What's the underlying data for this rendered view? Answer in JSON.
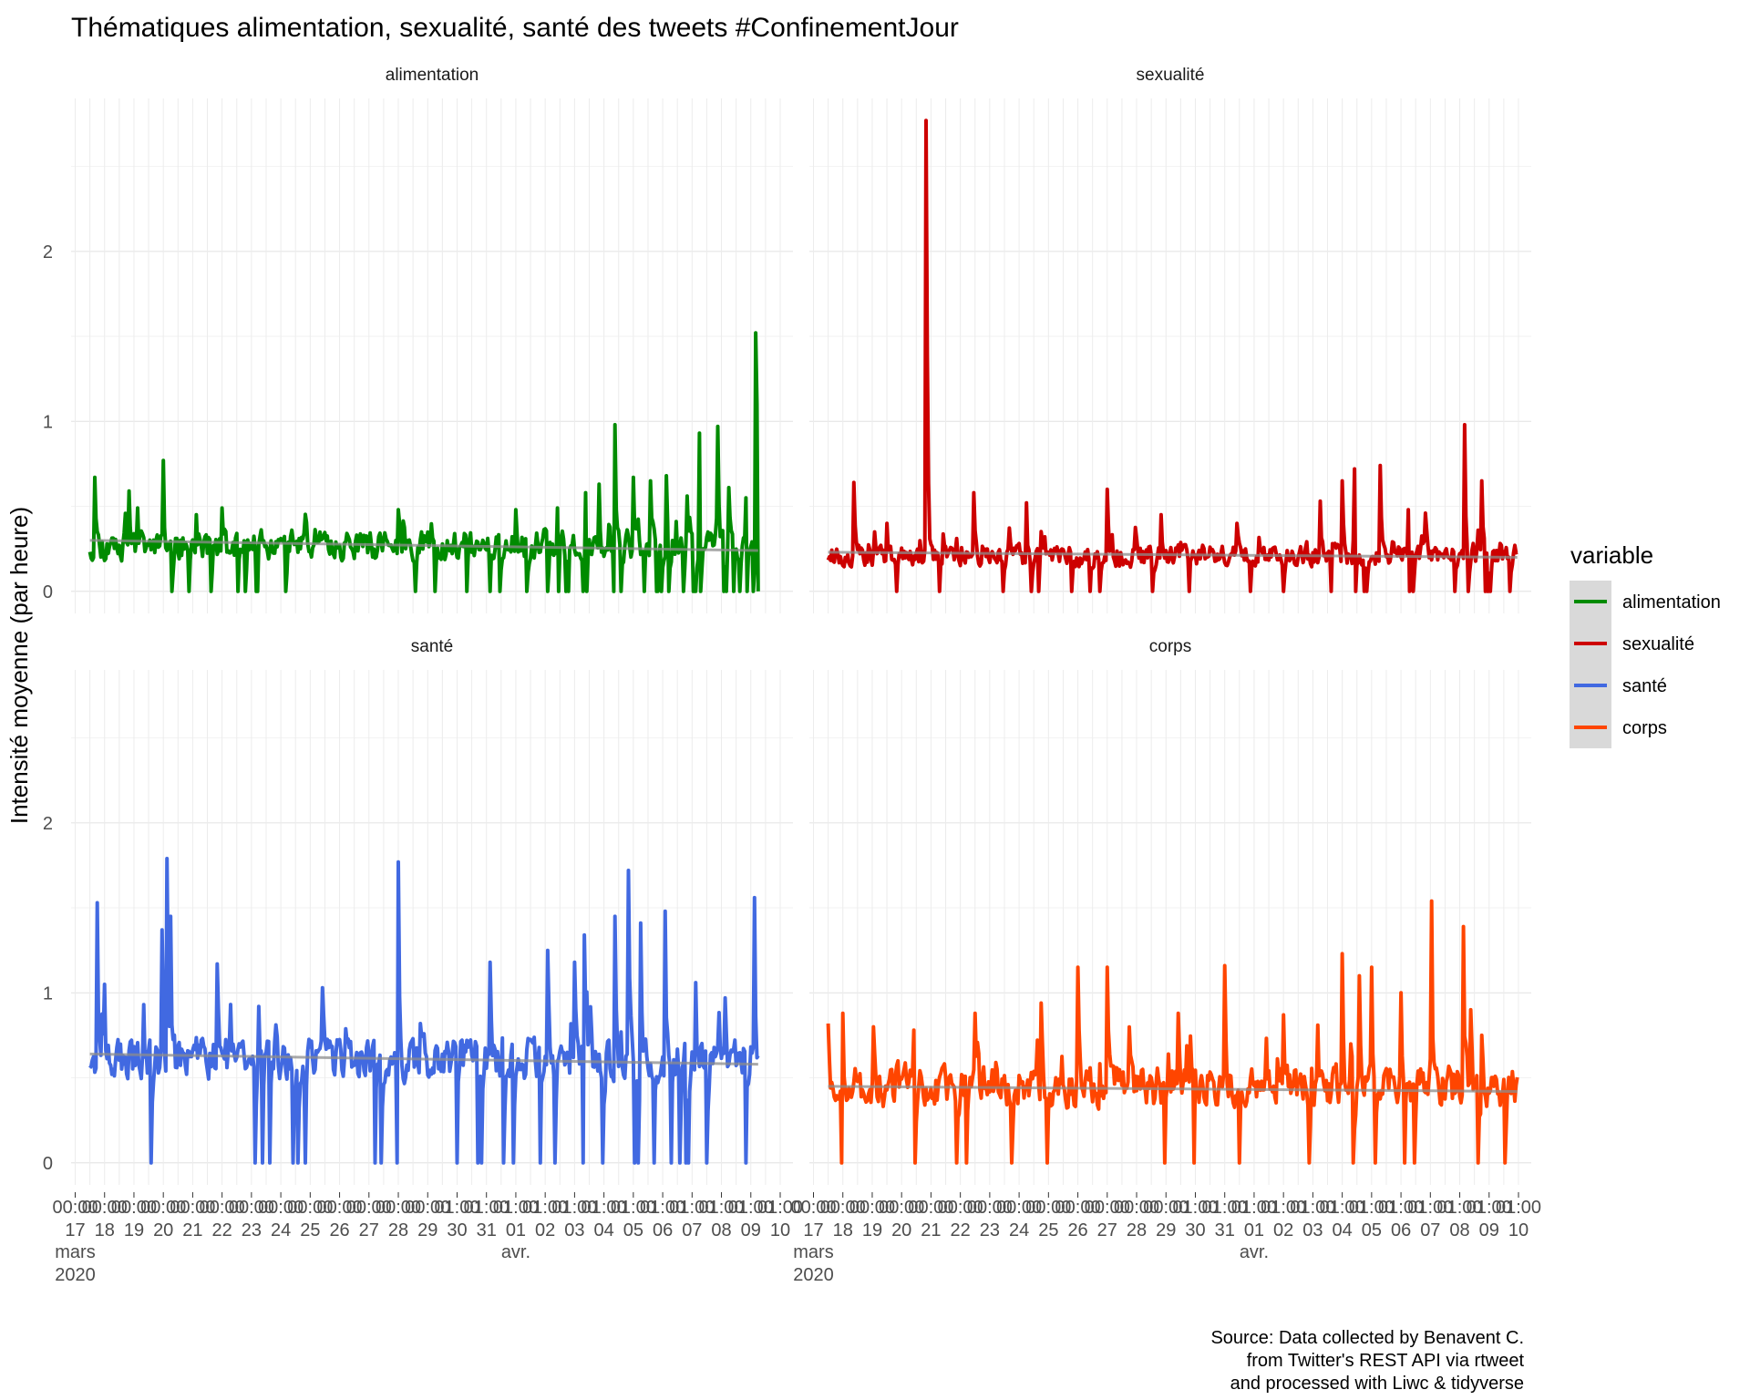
{
  "chart_data": {
    "type": "line",
    "title": "Thématiques alimentation, sexualité, santé des tweets #ConfinementJour",
    "ylabel": "Intensité moyenne (par heure)",
    "xlabel": "",
    "caption": [
      "Source: Data collected by Benavent C.",
      "from Twitter's REST API via rtweet",
      "and processed with Liwc & tidyverse"
    ],
    "legend": {
      "title": "variable",
      "position": "right",
      "items": [
        {
          "name": "alimentation",
          "color": "#008B00"
        },
        {
          "name": "sexualité",
          "color": "#CD0000"
        },
        {
          "name": "santé",
          "color": "#4169E1"
        },
        {
          "name": "corps",
          "color": "#FF4500"
        }
      ]
    },
    "x_range": [
      "2020-03-17 00:00",
      "2020-04-10 00:00"
    ],
    "ylim": [
      -0.13,
      2.9
    ],
    "y_ticks": [
      0,
      1,
      2
    ],
    "grid": true,
    "x_ticks": [
      {
        "date": "2020-03-17",
        "time": "00:00",
        "day": "17",
        "month": "mars",
        "year": "2020"
      },
      {
        "date": "2020-03-18",
        "time": "00:00",
        "day": "18"
      },
      {
        "date": "2020-03-19",
        "time": "00:00",
        "day": "19"
      },
      {
        "date": "2020-03-20",
        "time": "00:00",
        "day": "20"
      },
      {
        "date": "2020-03-21",
        "time": "00:00",
        "day": "21"
      },
      {
        "date": "2020-03-22",
        "time": "00:00",
        "day": "22"
      },
      {
        "date": "2020-03-23",
        "time": "00:00",
        "day": "23"
      },
      {
        "date": "2020-03-24",
        "time": "00:00",
        "day": "24"
      },
      {
        "date": "2020-03-25",
        "time": "00:00",
        "day": "25"
      },
      {
        "date": "2020-03-26",
        "time": "00:00",
        "day": "26"
      },
      {
        "date": "2020-03-27",
        "time": "00:00",
        "day": "27"
      },
      {
        "date": "2020-03-28",
        "time": "00:00",
        "day": "28"
      },
      {
        "date": "2020-03-29",
        "time": "00:00",
        "day": "29"
      },
      {
        "date": "2020-03-30",
        "time": "01:00",
        "day": "30"
      },
      {
        "date": "2020-03-31",
        "time": "01:00",
        "day": "31"
      },
      {
        "date": "2020-04-01",
        "time": "01:00",
        "day": "01",
        "month": "avr."
      },
      {
        "date": "2020-04-02",
        "time": "01:00",
        "day": "02"
      },
      {
        "date": "2020-04-03",
        "time": "01:00",
        "day": "03"
      },
      {
        "date": "2020-04-04",
        "time": "01:00",
        "day": "04"
      },
      {
        "date": "2020-04-05",
        "time": "01:00",
        "day": "05"
      },
      {
        "date": "2020-04-06",
        "time": "01:00",
        "day": "06"
      },
      {
        "date": "2020-04-07",
        "time": "01:00",
        "day": "07"
      },
      {
        "date": "2020-04-08",
        "time": "01:00",
        "day": "08"
      },
      {
        "date": "2020-04-09",
        "time": "01:00",
        "day": "09"
      },
      {
        "date": "2020-04-10",
        "time": "01:00",
        "day": "10"
      }
    ],
    "panels": [
      {
        "name": "alimentation",
        "color": "#008B00",
        "x_start": "2020-03-17 12:00",
        "x_end": "2020-04-09 06:00",
        "baseline": 0.27,
        "noise": 0.07,
        "seed": 11,
        "dips": 0.045,
        "trend": [
          0.3,
          0.24
        ],
        "spikes": [
          [
            "2020-03-17 16:00",
            0.67
          ],
          [
            "2020-03-18 20:00",
            0.59
          ],
          [
            "2020-03-19 03:00",
            0.49
          ],
          [
            "2020-03-20 00:00",
            0.77
          ],
          [
            "2020-03-21 03:00",
            0.45
          ],
          [
            "2020-03-22 00:00",
            0.49
          ],
          [
            "2020-03-28 00:00",
            0.48
          ],
          [
            "2020-04-01 00:00",
            0.48
          ],
          [
            "2020-04-02 10:00",
            0.49
          ],
          [
            "2020-04-03 09:00",
            0.58
          ],
          [
            "2020-04-03 20:00",
            0.63
          ],
          [
            "2020-04-04 09:00",
            0.98
          ],
          [
            "2020-04-05 00:00",
            0.67
          ],
          [
            "2020-04-05 14:00",
            0.65
          ],
          [
            "2020-04-06 03:00",
            0.68
          ],
          [
            "2020-04-06 20:00",
            0.56
          ],
          [
            "2020-04-07 06:00",
            0.93
          ],
          [
            "2020-04-07 21:00",
            0.97
          ],
          [
            "2020-04-08 06:00",
            0.61
          ],
          [
            "2020-04-08 20:00",
            0.55
          ],
          [
            "2020-04-09 04:00",
            1.52
          ],
          [
            "2020-04-09 05:00",
            1.1
          ]
        ]
      },
      {
        "name": "sexualité",
        "color": "#CD0000",
        "x_start": "2020-03-17 12:00",
        "x_end": "2020-04-09 23:00",
        "baseline": 0.21,
        "noise": 0.05,
        "seed": 23,
        "dips": 0.03,
        "trend": [
          0.23,
          0.2
        ],
        "spikes": [
          [
            "2020-03-18 09:00",
            0.64
          ],
          [
            "2020-03-19 12:00",
            0.4
          ],
          [
            "2020-03-20 20:00",
            2.77
          ],
          [
            "2020-03-20 21:00",
            1.39
          ],
          [
            "2020-03-22 11:00",
            0.58
          ],
          [
            "2020-03-24 06:00",
            0.52
          ],
          [
            "2020-03-27 00:00",
            0.6
          ],
          [
            "2020-03-28 20:00",
            0.45
          ],
          [
            "2020-03-31 10:00",
            0.4
          ],
          [
            "2020-04-03 06:00",
            0.53
          ],
          [
            "2020-04-04 00:00",
            0.65
          ],
          [
            "2020-04-04 10:00",
            0.72
          ],
          [
            "2020-04-05 07:00",
            0.74
          ],
          [
            "2020-04-06 06:00",
            0.48
          ],
          [
            "2020-04-06 20:00",
            0.46
          ],
          [
            "2020-04-08 04:00",
            0.98
          ],
          [
            "2020-04-08 18:00",
            0.65
          ]
        ]
      },
      {
        "name": "santé",
        "color": "#4169E1",
        "x_start": "2020-03-17 12:00",
        "x_end": "2020-04-09 06:00",
        "baseline": 0.61,
        "noise": 0.1,
        "seed": 37,
        "dips": 0.04,
        "trend": [
          0.64,
          0.58
        ],
        "spikes": [
          [
            "2020-03-17 18:00",
            1.53
          ],
          [
            "2020-03-18 00:00",
            1.05
          ],
          [
            "2020-03-19 08:00",
            0.93
          ],
          [
            "2020-03-19 23:00",
            1.37
          ],
          [
            "2020-03-20 03:00",
            1.79
          ],
          [
            "2020-03-20 06:00",
            1.45
          ],
          [
            "2020-03-21 20:00",
            1.17
          ],
          [
            "2020-03-23 06:00",
            0.92
          ],
          [
            "2020-03-25 10:00",
            1.03
          ],
          [
            "2020-03-28 00:00",
            1.77
          ],
          [
            "2020-03-31 03:00",
            1.18
          ],
          [
            "2020-04-02 02:00",
            1.25
          ],
          [
            "2020-04-03 00:00",
            1.18
          ],
          [
            "2020-04-03 08:00",
            1.34
          ],
          [
            "2020-04-04 09:00",
            1.45
          ],
          [
            "2020-04-04 20:00",
            1.72
          ],
          [
            "2020-04-05 06:00",
            1.41
          ],
          [
            "2020-04-06 02:00",
            1.48
          ],
          [
            "2020-04-07 03:00",
            1.06
          ],
          [
            "2020-04-08 03:00",
            0.97
          ],
          [
            "2020-04-09 03:00",
            1.56
          ]
        ]
      },
      {
        "name": "corps",
        "color": "#FF4500",
        "x_start": "2020-03-17 12:00",
        "x_end": "2020-04-09 23:00",
        "baseline": 0.45,
        "noise": 0.1,
        "seed": 53,
        "dips": 0.03,
        "trend": [
          0.45,
          0.42
        ],
        "spikes": [
          [
            "2020-03-17 12:00",
            0.82
          ],
          [
            "2020-03-18 00:00",
            0.88
          ],
          [
            "2020-03-19 01:00",
            0.8
          ],
          [
            "2020-03-20 10:00",
            0.78
          ],
          [
            "2020-03-22 12:00",
            0.88
          ],
          [
            "2020-03-24 18:00",
            0.94
          ],
          [
            "2020-03-26 00:00",
            1.15
          ],
          [
            "2020-03-27 00:00",
            1.15
          ],
          [
            "2020-03-29 10:00",
            0.88
          ],
          [
            "2020-03-31 00:00",
            1.16
          ],
          [
            "2020-04-02 00:00",
            0.87
          ],
          [
            "2020-04-03 04:00",
            0.81
          ],
          [
            "2020-04-04 00:00",
            1.23
          ],
          [
            "2020-04-04 14:00",
            1.1
          ],
          [
            "2020-04-05 00:00",
            1.15
          ],
          [
            "2020-04-06 00:00",
            1.0
          ],
          [
            "2020-04-07 01:00",
            1.54
          ],
          [
            "2020-04-08 03:00",
            1.39
          ],
          [
            "2020-04-08 09:00",
            0.9
          ],
          [
            "2020-04-08 18:00",
            0.75
          ]
        ]
      }
    ]
  }
}
